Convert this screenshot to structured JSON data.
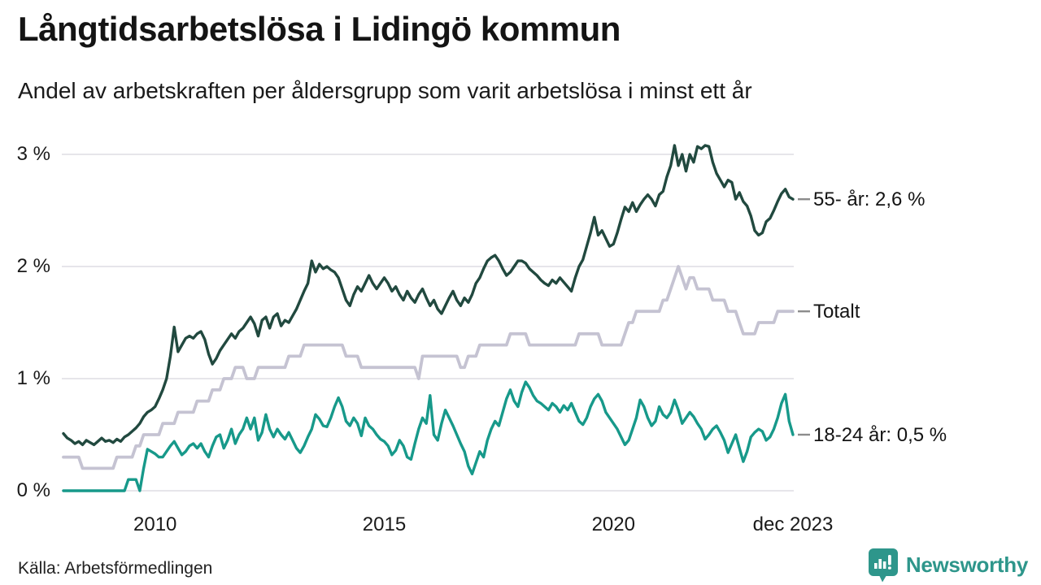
{
  "header": {
    "title": "Långtidsarbetslösa i Lidingö kommun",
    "subtitle": "Andel av arbetskraften per åldersgrupp som varit arbetslösa i minst ett år"
  },
  "footer": {
    "source": "Källa: Arbetsförmedlingen",
    "brand": {
      "name": "Newsworthy",
      "color": "#2e968b"
    }
  },
  "colors": {
    "grid": "#e6e5ea",
    "end_tick": "#8c8c8c",
    "text": "#141414",
    "background": "#ffffff"
  },
  "chart_data": {
    "type": "line",
    "title": "Långtidsarbetslösa i Lidingö kommun",
    "subtitle": "Andel av arbetskraften per åldersgrupp som varit arbetslösa i minst ett år",
    "unit": "% av arbetskraften",
    "grid": true,
    "x_axis": {
      "start": 2008.0,
      "end": 2023.9167,
      "months_per_step": 1,
      "ticks": [
        {
          "label": "2010",
          "t": 2010.0
        },
        {
          "label": "2015",
          "t": 2015.0
        },
        {
          "label": "2020",
          "t": 2020.0
        },
        {
          "label": "dec 2023",
          "t": 2023.9167
        }
      ]
    },
    "y_axis": {
      "min": 0,
      "max": 3,
      "ticks": [
        {
          "label": "3 %",
          "v": 3
        },
        {
          "label": "2 %",
          "v": 2
        },
        {
          "label": "1 %",
          "v": 1
        },
        {
          "label": "0 %",
          "v": 0
        }
      ]
    },
    "series": [
      {
        "name": "55- år",
        "label": "55- år: 2,6 %",
        "end_value": "2,6 %",
        "color": "#21493f",
        "stroke_width": 3.4,
        "values": [
          0.51,
          0.47,
          0.45,
          0.42,
          0.44,
          0.41,
          0.45,
          0.43,
          0.41,
          0.44,
          0.47,
          0.44,
          0.45,
          0.43,
          0.46,
          0.44,
          0.48,
          0.5,
          0.53,
          0.56,
          0.6,
          0.66,
          0.7,
          0.72,
          0.75,
          0.82,
          0.9,
          1.0,
          1.2,
          1.46,
          1.24,
          1.3,
          1.36,
          1.38,
          1.36,
          1.4,
          1.42,
          1.35,
          1.22,
          1.13,
          1.18,
          1.25,
          1.3,
          1.35,
          1.4,
          1.36,
          1.42,
          1.45,
          1.5,
          1.55,
          1.49,
          1.38,
          1.52,
          1.55,
          1.45,
          1.55,
          1.58,
          1.47,
          1.52,
          1.5,
          1.56,
          1.62,
          1.7,
          1.78,
          1.85,
          2.05,
          1.95,
          2.02,
          1.98,
          2.0,
          1.97,
          1.95,
          1.9,
          1.8,
          1.7,
          1.65,
          1.75,
          1.82,
          1.78,
          1.85,
          1.92,
          1.85,
          1.8,
          1.85,
          1.9,
          1.85,
          1.78,
          1.82,
          1.75,
          1.7,
          1.78,
          1.72,
          1.68,
          1.75,
          1.8,
          1.72,
          1.65,
          1.7,
          1.62,
          1.58,
          1.65,
          1.72,
          1.78,
          1.7,
          1.65,
          1.72,
          1.68,
          1.75,
          1.85,
          1.9,
          1.98,
          2.05,
          2.08,
          2.1,
          2.05,
          1.98,
          1.92,
          1.95,
          2.0,
          2.05,
          2.05,
          2.03,
          1.98,
          1.95,
          1.92,
          1.88,
          1.85,
          1.83,
          1.88,
          1.85,
          1.9,
          1.86,
          1.82,
          1.78,
          1.9,
          2.0,
          2.06,
          2.18,
          2.3,
          2.44,
          2.28,
          2.32,
          2.25,
          2.18,
          2.2,
          2.3,
          2.42,
          2.53,
          2.49,
          2.57,
          2.49,
          2.55,
          2.6,
          2.64,
          2.6,
          2.54,
          2.64,
          2.67,
          2.8,
          2.9,
          3.08,
          2.9,
          3.0,
          2.85,
          3.0,
          2.93,
          3.07,
          3.05,
          3.08,
          3.07,
          2.93,
          2.83,
          2.77,
          2.71,
          2.77,
          2.75,
          2.6,
          2.66,
          2.58,
          2.54,
          2.45,
          2.32,
          2.28,
          2.3,
          2.4,
          2.43,
          2.5,
          2.58,
          2.65,
          2.69,
          2.62,
          2.6
        ]
      },
      {
        "name": "Totalt",
        "label": "Totalt",
        "end_value": "1,6 %",
        "color": "#c5c3d2",
        "stroke_width": 3.8,
        "values": [
          0.3,
          0.3,
          0.3,
          0.3,
          0.3,
          0.2,
          0.2,
          0.2,
          0.2,
          0.2,
          0.2,
          0.2,
          0.2,
          0.2,
          0.3,
          0.3,
          0.3,
          0.3,
          0.3,
          0.4,
          0.4,
          0.5,
          0.5,
          0.5,
          0.5,
          0.5,
          0.6,
          0.6,
          0.6,
          0.6,
          0.7,
          0.7,
          0.7,
          0.7,
          0.7,
          0.8,
          0.8,
          0.8,
          0.8,
          0.9,
          0.9,
          0.9,
          1.0,
          1.0,
          1.0,
          1.1,
          1.1,
          1.1,
          1.0,
          1.0,
          1.0,
          1.1,
          1.1,
          1.1,
          1.1,
          1.1,
          1.1,
          1.1,
          1.1,
          1.2,
          1.2,
          1.2,
          1.2,
          1.3,
          1.3,
          1.3,
          1.3,
          1.3,
          1.3,
          1.3,
          1.3,
          1.3,
          1.3,
          1.3,
          1.2,
          1.2,
          1.2,
          1.2,
          1.1,
          1.1,
          1.1,
          1.1,
          1.1,
          1.1,
          1.1,
          1.1,
          1.1,
          1.1,
          1.1,
          1.1,
          1.1,
          1.1,
          1.1,
          1.0,
          1.2,
          1.2,
          1.2,
          1.2,
          1.2,
          1.2,
          1.2,
          1.2,
          1.2,
          1.2,
          1.1,
          1.1,
          1.2,
          1.2,
          1.2,
          1.3,
          1.3,
          1.3,
          1.3,
          1.3,
          1.3,
          1.3,
          1.3,
          1.4,
          1.4,
          1.4,
          1.4,
          1.4,
          1.3,
          1.3,
          1.3,
          1.3,
          1.3,
          1.3,
          1.3,
          1.3,
          1.3,
          1.3,
          1.3,
          1.3,
          1.3,
          1.4,
          1.4,
          1.4,
          1.4,
          1.4,
          1.4,
          1.3,
          1.3,
          1.3,
          1.3,
          1.3,
          1.3,
          1.4,
          1.5,
          1.5,
          1.6,
          1.6,
          1.6,
          1.6,
          1.6,
          1.6,
          1.6,
          1.7,
          1.7,
          1.8,
          1.9,
          2.0,
          1.9,
          1.8,
          1.9,
          1.9,
          1.8,
          1.8,
          1.8,
          1.8,
          1.7,
          1.7,
          1.7,
          1.7,
          1.6,
          1.6,
          1.6,
          1.5,
          1.4,
          1.4,
          1.4,
          1.4,
          1.5,
          1.5,
          1.5,
          1.5,
          1.5,
          1.6,
          1.6,
          1.6,
          1.6,
          1.6
        ]
      },
      {
        "name": "18-24 år",
        "label": "18-24 år: 0,5 %",
        "end_value": "0,5 %",
        "color": "#17998a",
        "stroke_width": 3.4,
        "values": [
          0.0,
          0.0,
          0.0,
          0.0,
          0.0,
          0.0,
          0.0,
          0.0,
          0.0,
          0.0,
          0.0,
          0.0,
          0.0,
          0.0,
          0.0,
          0.0,
          0.0,
          0.1,
          0.1,
          0.1,
          0.0,
          0.2,
          0.37,
          0.35,
          0.33,
          0.3,
          0.3,
          0.35,
          0.4,
          0.44,
          0.38,
          0.32,
          0.35,
          0.4,
          0.42,
          0.38,
          0.42,
          0.35,
          0.3,
          0.4,
          0.48,
          0.5,
          0.38,
          0.45,
          0.55,
          0.42,
          0.5,
          0.55,
          0.65,
          0.55,
          0.65,
          0.45,
          0.52,
          0.68,
          0.55,
          0.48,
          0.55,
          0.5,
          0.46,
          0.52,
          0.45,
          0.38,
          0.34,
          0.4,
          0.48,
          0.55,
          0.68,
          0.64,
          0.58,
          0.57,
          0.65,
          0.75,
          0.83,
          0.75,
          0.62,
          0.58,
          0.65,
          0.6,
          0.49,
          0.65,
          0.58,
          0.55,
          0.5,
          0.46,
          0.44,
          0.4,
          0.32,
          0.36,
          0.45,
          0.4,
          0.3,
          0.28,
          0.42,
          0.55,
          0.65,
          0.6,
          0.85,
          0.5,
          0.45,
          0.6,
          0.72,
          0.65,
          0.58,
          0.5,
          0.42,
          0.35,
          0.22,
          0.15,
          0.25,
          0.35,
          0.3,
          0.45,
          0.55,
          0.62,
          0.58,
          0.7,
          0.82,
          0.9,
          0.8,
          0.75,
          0.88,
          0.97,
          0.92,
          0.85,
          0.8,
          0.78,
          0.75,
          0.72,
          0.78,
          0.75,
          0.7,
          0.76,
          0.72,
          0.78,
          0.7,
          0.62,
          0.59,
          0.65,
          0.75,
          0.82,
          0.86,
          0.8,
          0.7,
          0.65,
          0.6,
          0.55,
          0.48,
          0.41,
          0.45,
          0.55,
          0.65,
          0.81,
          0.75,
          0.65,
          0.58,
          0.62,
          0.75,
          0.68,
          0.65,
          0.7,
          0.81,
          0.72,
          0.6,
          0.65,
          0.7,
          0.66,
          0.6,
          0.55,
          0.46,
          0.5,
          0.55,
          0.58,
          0.52,
          0.45,
          0.34,
          0.42,
          0.5,
          0.38,
          0.26,
          0.35,
          0.48,
          0.52,
          0.55,
          0.53,
          0.45,
          0.48,
          0.55,
          0.65,
          0.78,
          0.86,
          0.62,
          0.5
        ]
      }
    ]
  }
}
